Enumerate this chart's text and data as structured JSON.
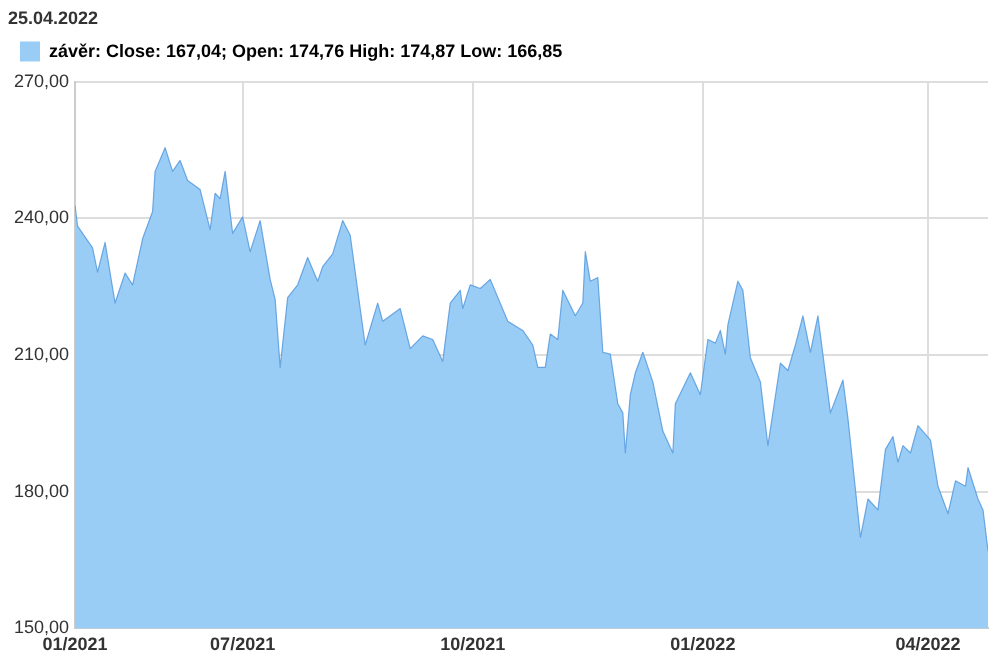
{
  "chart_data": {
    "type": "area",
    "title": "25.04.2022",
    "x": [
      "2021-04-25",
      "2021-04-26",
      "2021-05-02",
      "2021-05-04",
      "2021-05-07",
      "2021-05-11",
      "2021-05-15",
      "2021-05-18",
      "2021-05-22",
      "2021-05-26",
      "2021-05-27",
      "2021-05-31",
      "2021-06-03",
      "2021-06-06",
      "2021-06-09",
      "2021-06-14",
      "2021-06-18",
      "2021-06-20",
      "2021-06-22",
      "2021-06-24",
      "2021-06-27",
      "2021-07-01",
      "2021-07-04",
      "2021-07-08",
      "2021-07-12",
      "2021-07-14",
      "2021-07-16",
      "2021-07-19",
      "2021-07-23",
      "2021-07-27",
      "2021-07-31",
      "2021-08-02",
      "2021-08-06",
      "2021-08-10",
      "2021-08-13",
      "2021-08-16",
      "2021-08-19",
      "2021-08-24",
      "2021-08-26",
      "2021-09-02",
      "2021-09-06",
      "2021-09-11",
      "2021-09-15",
      "2021-09-19",
      "2021-09-22",
      "2021-09-26",
      "2021-09-27",
      "2021-09-30",
      "2021-10-04",
      "2021-10-08",
      "2021-10-15",
      "2021-10-21",
      "2021-10-25",
      "2021-10-27",
      "2021-10-30",
      "2021-11-01",
      "2021-11-04",
      "2021-11-06",
      "2021-11-11",
      "2021-11-14",
      "2021-11-15",
      "2021-11-17",
      "2021-11-20",
      "2021-11-22",
      "2021-11-25",
      "2021-11-28",
      "2021-11-30",
      "2021-12-01",
      "2021-12-03",
      "2021-12-05",
      "2021-12-08",
      "2021-12-12",
      "2021-12-16",
      "2021-12-20",
      "2021-12-21",
      "2021-12-27",
      "2021-12-31",
      "2022-01-03",
      "2022-01-06",
      "2022-01-08",
      "2022-01-10",
      "2022-01-11",
      "2022-01-15",
      "2022-01-17",
      "2022-01-20",
      "2022-01-24",
      "2022-01-27",
      "2022-02-01",
      "2022-02-04",
      "2022-02-07",
      "2022-02-10",
      "2022-02-13",
      "2022-02-16",
      "2022-02-21",
      "2022-02-26",
      "2022-02-28",
      "2022-03-05",
      "2022-03-08",
      "2022-03-12",
      "2022-03-15",
      "2022-03-18",
      "2022-03-20",
      "2022-03-22",
      "2022-03-25",
      "2022-03-28",
      "2022-04-02",
      "2022-04-05",
      "2022-04-09",
      "2022-04-12",
      "2022-04-16",
      "2022-04-17",
      "2022-04-21",
      "2022-04-23",
      "2022-04-25"
    ],
    "series": [
      {
        "name": "závěr: Close: 167,04; Open: 174,76 High: 174,87 Low: 166,85",
        "color": "#99cdf6",
        "values": [
          242.8,
          238.3,
          233.5,
          228.2,
          234.7,
          221.4,
          228.0,
          225.4,
          235.5,
          241.5,
          250.3,
          255.5,
          250.3,
          252.7,
          248.3,
          246.3,
          237.5,
          245.5,
          244.3,
          250.3,
          236.7,
          240.3,
          232.7,
          239.5,
          226.6,
          222.2,
          207.3,
          222.6,
          225.4,
          231.4,
          226.2,
          229.4,
          232.2,
          239.5,
          236.3,
          224.2,
          212.2,
          221.4,
          217.4,
          220.2,
          211.4,
          214.2,
          213.4,
          208.6,
          221.4,
          224.2,
          220.2,
          225.4,
          224.6,
          226.6,
          217.4,
          215.4,
          212.2,
          207.3,
          207.3,
          214.6,
          213.4,
          224.2,
          218.6,
          221.4,
          232.7,
          226.2,
          227.0,
          210.6,
          210.2,
          199.3,
          197.3,
          188.5,
          201.3,
          206.1,
          210.6,
          204.1,
          193.3,
          188.5,
          199.3,
          206.1,
          201.3,
          213.4,
          212.6,
          215.4,
          210.2,
          216.6,
          226.2,
          224.2,
          209.4,
          204.1,
          190.1,
          208.2,
          206.6,
          212.2,
          218.6,
          210.6,
          218.6,
          197.3,
          204.5,
          196.1,
          170.0,
          178.4,
          176.0,
          189.3,
          192.1,
          186.5,
          190.1,
          188.5,
          194.5,
          191.3,
          181.2,
          175.2,
          182.4,
          181.2,
          185.3,
          178.4,
          176.0,
          167.04
        ]
      }
    ],
    "xlim": [
      "2021-04-25",
      "2022-04-25"
    ],
    "xticks": [
      {
        "value": "2021-04-25",
        "label": "01/2021"
      },
      {
        "value": "2021-07-01",
        "label": "07/2021"
      },
      {
        "value": "2021-10-01",
        "label": "10/2021"
      },
      {
        "value": "2022-01-01",
        "label": "01/2022"
      },
      {
        "value": "2022-04-01",
        "label": "04/2022"
      }
    ],
    "ylim": [
      150,
      270
    ],
    "yticks": [
      {
        "value": 150,
        "label": "150,00"
      },
      {
        "value": 180,
        "label": "180,00"
      },
      {
        "value": 210,
        "label": "210,00"
      },
      {
        "value": 240,
        "label": "240,00"
      },
      {
        "value": 270,
        "label": "270,00"
      }
    ],
    "grid": true,
    "legend": "top left",
    "marker": "none"
  }
}
